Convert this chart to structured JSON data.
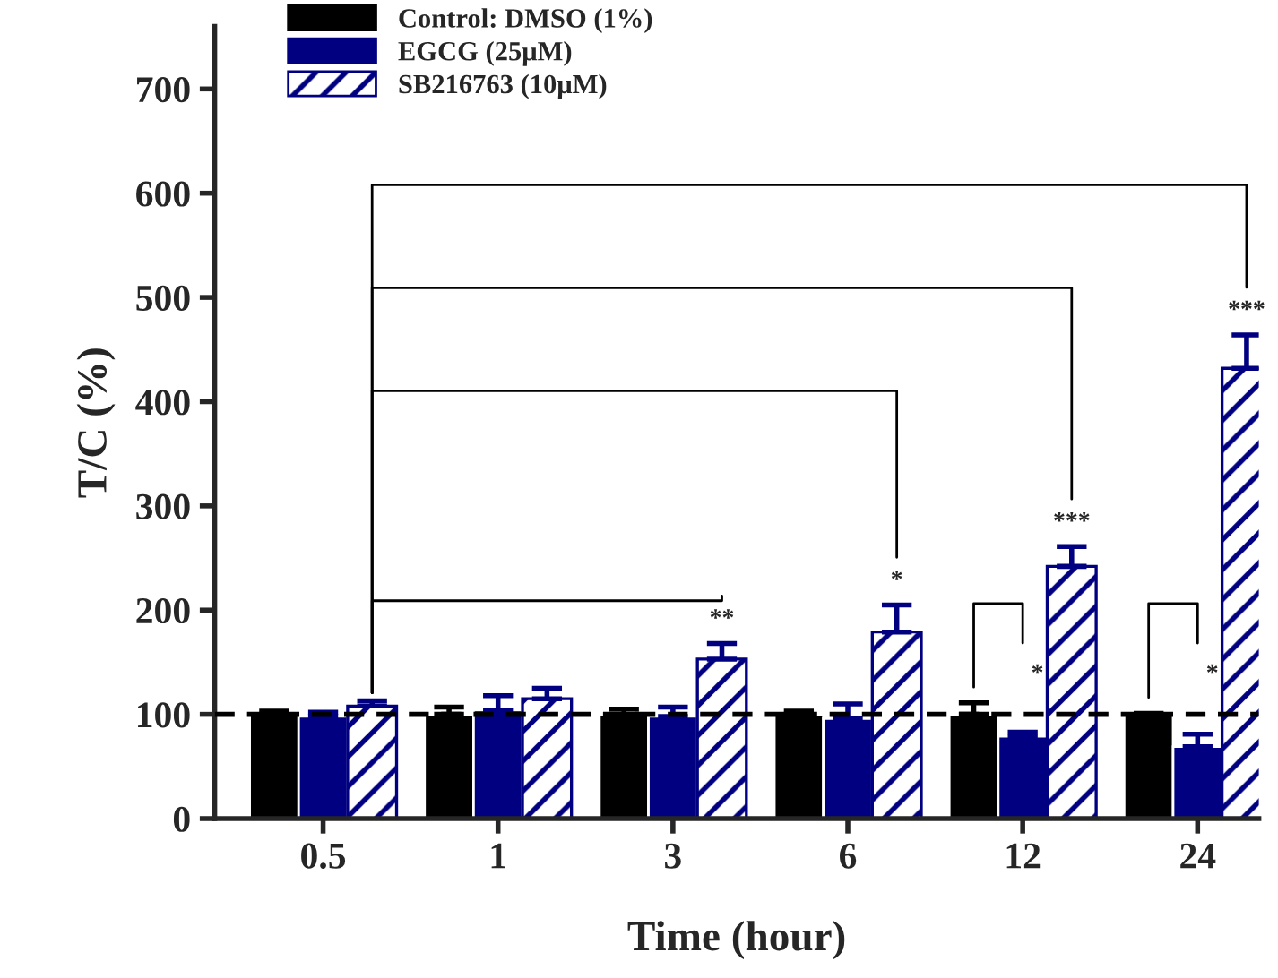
{
  "chart_data": {
    "type": "bar",
    "xlabel": "Time (hour)",
    "ylabel": "T/C (%)",
    "categories": [
      "0.5",
      "1",
      "3",
      "6",
      "12",
      "24"
    ],
    "series": [
      {
        "name": "Control: DMSO (1%)",
        "color": "#000000",
        "values": [
          100,
          100,
          100,
          100,
          100,
          100
        ],
        "errors": [
          3,
          7,
          5,
          3,
          11,
          1
        ]
      },
      {
        "name": "EGCG (25μM)",
        "color": "#000080",
        "values": [
          98,
          104,
          98,
          96,
          79,
          69
        ],
        "errors": [
          4,
          14,
          9,
          14,
          4,
          12
        ]
      },
      {
        "name": "SB216763 (10μM)",
        "color": "#000080",
        "values": [
          108,
          115,
          153,
          179,
          242,
          432
        ],
        "errors": [
          5,
          10,
          15,
          26,
          19,
          32
        ]
      }
    ],
    "ylim": [
      0,
      760
    ],
    "yticks": [
      0,
      100,
      200,
      300,
      400,
      500,
      600,
      700
    ],
    "ref_lines": [
      {
        "axis": "y",
        "value": 100,
        "color": "#000000",
        "line_style": "dashed"
      }
    ],
    "annotations": [
      "**",
      "*",
      "***",
      "*",
      "***",
      "*"
    ],
    "legend": "top left",
    "grid": false
  }
}
